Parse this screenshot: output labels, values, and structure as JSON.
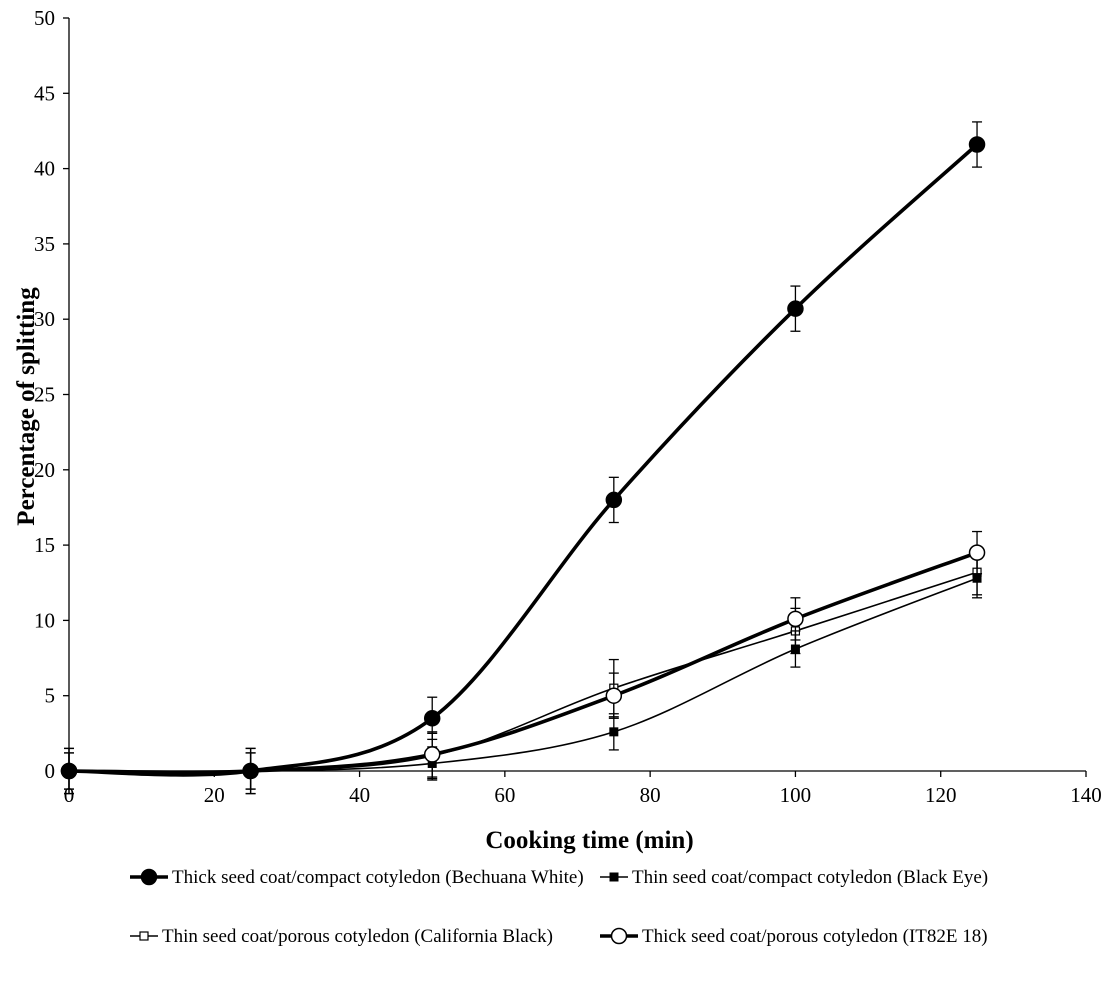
{
  "chart_data": {
    "type": "line",
    "title": "",
    "xlabel": "Cooking time (min)",
    "ylabel": "Percentage of splitting",
    "xlim": [
      0,
      140
    ],
    "ylim": [
      0,
      50
    ],
    "x_ticks": [
      0,
      20,
      40,
      60,
      80,
      100,
      120,
      140
    ],
    "y_ticks": [
      0,
      5,
      10,
      15,
      20,
      25,
      30,
      35,
      40,
      45,
      50
    ],
    "grid": false,
    "legend_placement": "bottom",
    "series": [
      {
        "name": "Thick seed coat/compact cotyledon (Bechuana White)",
        "marker": "filled-circle",
        "line_weight": "heavy",
        "color": "#000000",
        "x": [
          0,
          25,
          50,
          75,
          100,
          125
        ],
        "y": [
          0,
          0,
          3.5,
          18,
          30.7,
          41.6
        ],
        "error": [
          1.5,
          1.5,
          1.4,
          1.5,
          1.5,
          1.5
        ]
      },
      {
        "name": "Thin seed coat/compact cotyledon (Black Eye)",
        "marker": "filled-square",
        "line_weight": "thin",
        "color": "#000000",
        "x": [
          0,
          25,
          50,
          75,
          100,
          125
        ],
        "y": [
          0,
          0,
          0.5,
          2.6,
          8.1,
          12.8
        ],
        "error": [
          1.2,
          1.2,
          1.1,
          1.2,
          1.2,
          1.3
        ]
      },
      {
        "name": "Thin seed coat/porous cotyledon (California Black)",
        "marker": "open-square",
        "line_weight": "thin",
        "color": "#000000",
        "x": [
          0,
          25,
          50,
          75,
          100,
          125
        ],
        "y": [
          0,
          0,
          1.0,
          5.5,
          9.3,
          13.2
        ],
        "error": [
          1.2,
          1.2,
          1.5,
          1.9,
          1.5,
          1.5
        ]
      },
      {
        "name": "Thick seed coat/porous cotyledon  (IT82E 18)",
        "marker": "open-circle",
        "line_weight": "heavy",
        "color": "#000000",
        "x": [
          0,
          25,
          50,
          75,
          100,
          125
        ],
        "y": [
          0,
          0,
          1.1,
          5.0,
          10.1,
          14.5
        ],
        "error": [
          1.5,
          1.5,
          1.5,
          1.5,
          1.4,
          1.4
        ]
      }
    ]
  }
}
